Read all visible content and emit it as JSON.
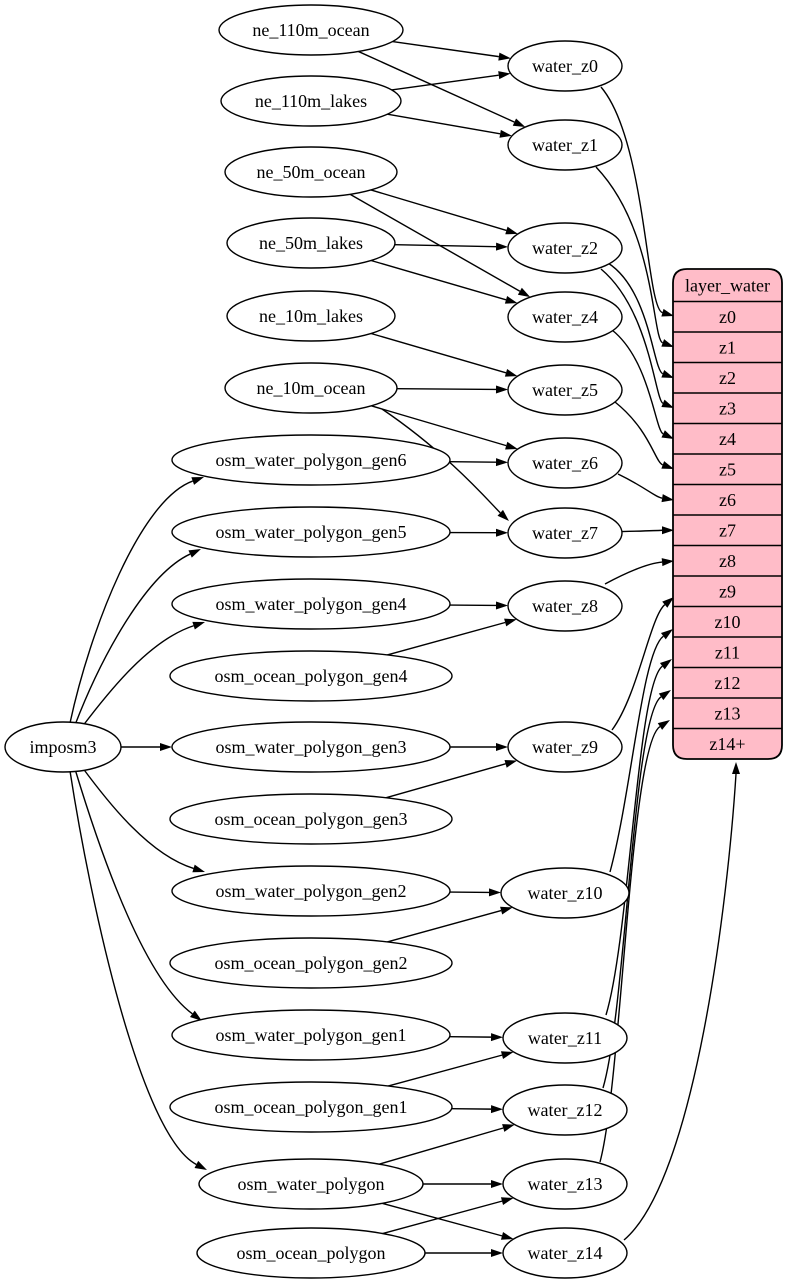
{
  "diagram": {
    "background": "#ffffff",
    "node_fill": "#ffffff",
    "node_stroke": "#000000",
    "edge_color": "#000000",
    "record": {
      "id": "layer_water",
      "title": "layer_water",
      "fill": "#ffbcc8",
      "stroke": "#000000",
      "rows": [
        "z0",
        "z1",
        "z2",
        "z3",
        "z4",
        "z5",
        "z6",
        "z7",
        "z8",
        "z9",
        "z10",
        "z11",
        "z12",
        "z13",
        "z14+"
      ]
    },
    "nodes": [
      {
        "id": "imposm3",
        "label": "imposm3"
      },
      {
        "id": "ne_110m_ocean",
        "label": "ne_110m_ocean"
      },
      {
        "id": "ne_110m_lakes",
        "label": "ne_110m_lakes"
      },
      {
        "id": "ne_50m_ocean",
        "label": "ne_50m_ocean"
      },
      {
        "id": "ne_50m_lakes",
        "label": "ne_50m_lakes"
      },
      {
        "id": "ne_10m_lakes",
        "label": "ne_10m_lakes"
      },
      {
        "id": "ne_10m_ocean",
        "label": "ne_10m_ocean"
      },
      {
        "id": "osm_water_polygon_gen6",
        "label": "osm_water_polygon_gen6"
      },
      {
        "id": "osm_water_polygon_gen5",
        "label": "osm_water_polygon_gen5"
      },
      {
        "id": "osm_water_polygon_gen4",
        "label": "osm_water_polygon_gen4"
      },
      {
        "id": "osm_ocean_polygon_gen4",
        "label": "osm_ocean_polygon_gen4"
      },
      {
        "id": "osm_water_polygon_gen3",
        "label": "osm_water_polygon_gen3"
      },
      {
        "id": "osm_ocean_polygon_gen3",
        "label": "osm_ocean_polygon_gen3"
      },
      {
        "id": "osm_water_polygon_gen2",
        "label": "osm_water_polygon_gen2"
      },
      {
        "id": "osm_ocean_polygon_gen2",
        "label": "osm_ocean_polygon_gen2"
      },
      {
        "id": "osm_water_polygon_gen1",
        "label": "osm_water_polygon_gen1"
      },
      {
        "id": "osm_ocean_polygon_gen1",
        "label": "osm_ocean_polygon_gen1"
      },
      {
        "id": "osm_water_polygon",
        "label": "osm_water_polygon"
      },
      {
        "id": "osm_ocean_polygon",
        "label": "osm_ocean_polygon"
      },
      {
        "id": "water_z0",
        "label": "water_z0"
      },
      {
        "id": "water_z1",
        "label": "water_z1"
      },
      {
        "id": "water_z2",
        "label": "water_z2"
      },
      {
        "id": "water_z4",
        "label": "water_z4"
      },
      {
        "id": "water_z5",
        "label": "water_z5"
      },
      {
        "id": "water_z6",
        "label": "water_z6"
      },
      {
        "id": "water_z7",
        "label": "water_z7"
      },
      {
        "id": "water_z8",
        "label": "water_z8"
      },
      {
        "id": "water_z9",
        "label": "water_z9"
      },
      {
        "id": "water_z10",
        "label": "water_z10"
      },
      {
        "id": "water_z11",
        "label": "water_z11"
      },
      {
        "id": "water_z12",
        "label": "water_z12"
      },
      {
        "id": "water_z13",
        "label": "water_z13"
      },
      {
        "id": "water_z14",
        "label": "water_z14"
      }
    ],
    "edges": [
      [
        "ne_110m_ocean",
        "water_z0"
      ],
      [
        "ne_110m_ocean",
        "water_z1"
      ],
      [
        "ne_110m_lakes",
        "water_z0"
      ],
      [
        "ne_110m_lakes",
        "water_z1"
      ],
      [
        "ne_50m_ocean",
        "water_z2"
      ],
      [
        "ne_50m_ocean",
        "water_z4"
      ],
      [
        "ne_50m_lakes",
        "water_z2"
      ],
      [
        "ne_50m_lakes",
        "water_z4"
      ],
      [
        "ne_10m_lakes",
        "water_z5"
      ],
      [
        "ne_10m_ocean",
        "water_z5"
      ],
      [
        "ne_10m_ocean",
        "water_z6"
      ],
      [
        "ne_10m_ocean",
        "water_z7"
      ],
      [
        "osm_water_polygon_gen6",
        "water_z6"
      ],
      [
        "osm_water_polygon_gen5",
        "water_z7"
      ],
      [
        "osm_water_polygon_gen4",
        "water_z8"
      ],
      [
        "osm_ocean_polygon_gen4",
        "water_z8"
      ],
      [
        "osm_water_polygon_gen3",
        "water_z9"
      ],
      [
        "osm_ocean_polygon_gen3",
        "water_z9"
      ],
      [
        "osm_water_polygon_gen2",
        "water_z10"
      ],
      [
        "osm_ocean_polygon_gen2",
        "water_z10"
      ],
      [
        "osm_water_polygon_gen1",
        "water_z11"
      ],
      [
        "osm_ocean_polygon_gen1",
        "water_z11"
      ],
      [
        "osm_ocean_polygon_gen1",
        "water_z12"
      ],
      [
        "osm_water_polygon",
        "water_z12"
      ],
      [
        "osm_water_polygon",
        "water_z13"
      ],
      [
        "osm_water_polygon",
        "water_z14"
      ],
      [
        "osm_ocean_polygon",
        "water_z13"
      ],
      [
        "osm_ocean_polygon",
        "water_z14"
      ],
      [
        "imposm3",
        "osm_water_polygon_gen6"
      ],
      [
        "imposm3",
        "osm_water_polygon_gen5"
      ],
      [
        "imposm3",
        "osm_water_polygon_gen4"
      ],
      [
        "imposm3",
        "osm_water_polygon_gen3"
      ],
      [
        "imposm3",
        "osm_water_polygon_gen2"
      ],
      [
        "imposm3",
        "osm_water_polygon_gen1"
      ],
      [
        "imposm3",
        "osm_water_polygon"
      ],
      [
        "water_z0",
        "layer_water:z0"
      ],
      [
        "water_z1",
        "layer_water:z1"
      ],
      [
        "water_z2",
        "layer_water:z2"
      ],
      [
        "water_z2",
        "layer_water:z3"
      ],
      [
        "water_z4",
        "layer_water:z4"
      ],
      [
        "water_z5",
        "layer_water:z5"
      ],
      [
        "water_z6",
        "layer_water:z6"
      ],
      [
        "water_z7",
        "layer_water:z7"
      ],
      [
        "water_z8",
        "layer_water:z8"
      ],
      [
        "water_z9",
        "layer_water:z9"
      ],
      [
        "water_z10",
        "layer_water:z10"
      ],
      [
        "water_z11",
        "layer_water:z11"
      ],
      [
        "water_z12",
        "layer_water:z12"
      ],
      [
        "water_z13",
        "layer_water:z13"
      ],
      [
        "water_z14",
        "layer_water:z14+"
      ]
    ]
  }
}
